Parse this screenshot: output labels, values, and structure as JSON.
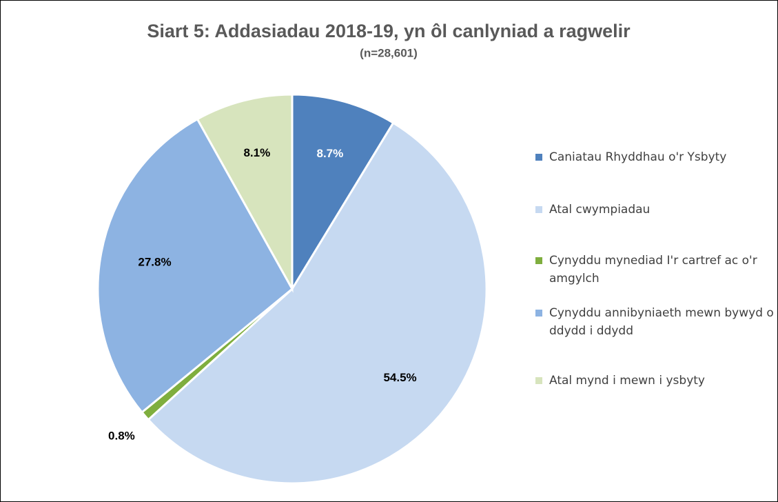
{
  "chart_data": {
    "type": "pie",
    "title": "Siart 5: Addasiadau 2018-19, yn ôl canlyniad a ragwelir",
    "subtitle": "(n=28,601)",
    "categories": [
      "Caniatau Rhyddhau o'r Ysbyty",
      "Atal cwympiadau",
      "Cynyddu mynediad I'r cartref ac o'r amgylch",
      "Cynyddu annibyniaeth mewn bywyd o ddydd i ddydd",
      "Atal mynd i mewn i ysbyty"
    ],
    "values": [
      8.7,
      54.5,
      0.8,
      27.8,
      8.1
    ],
    "value_labels": [
      "8.7%",
      "54.5%",
      "0.8%",
      "27.8%",
      "8.1%"
    ],
    "colors": [
      "#4f81bd",
      "#c6d9f1",
      "#7fae3e",
      "#8db3e2",
      "#d7e4bd"
    ],
    "legend": "right"
  }
}
